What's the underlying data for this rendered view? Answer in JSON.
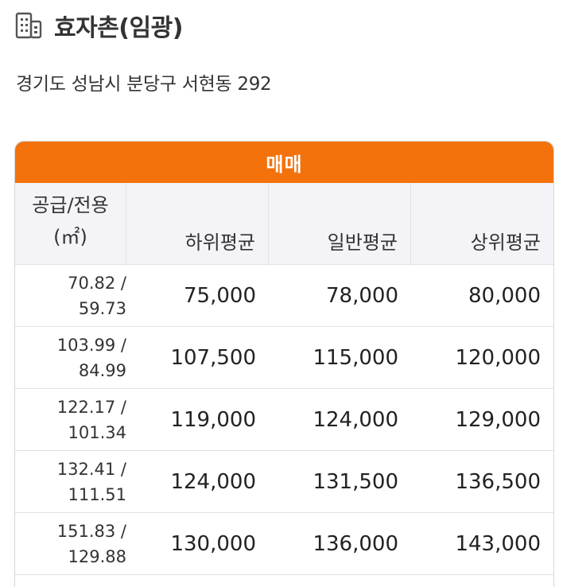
{
  "title": "효자촌(임광)",
  "icon": "building-icon",
  "address": "경기도 성남시 분당구 서현동 292",
  "table": {
    "section_label": "매매",
    "area_header_line1": "공급/전용",
    "area_header_line2": "(㎡)",
    "columns": [
      "하위평균",
      "일반평균",
      "상위평균"
    ],
    "rows": [
      {
        "supply": "70.82 /",
        "exclusive": "59.73",
        "low": "75,000",
        "avg": "78,000",
        "high": "80,000"
      },
      {
        "supply": "103.99 /",
        "exclusive": "84.99",
        "low": "107,500",
        "avg": "115,000",
        "high": "120,000"
      },
      {
        "supply": "122.17 /",
        "exclusive": "101.34",
        "low": "119,000",
        "avg": "124,000",
        "high": "129,000"
      },
      {
        "supply": "132.41 /",
        "exclusive": "111.51",
        "low": "124,000",
        "avg": "131,500",
        "high": "136,500"
      },
      {
        "supply": "151.83 /",
        "exclusive": "129.88",
        "low": "130,000",
        "avg": "136,000",
        "high": "143,000"
      }
    ]
  },
  "colors": {
    "accent": "#f4720b",
    "header_bg": "#f4f4f8"
  }
}
